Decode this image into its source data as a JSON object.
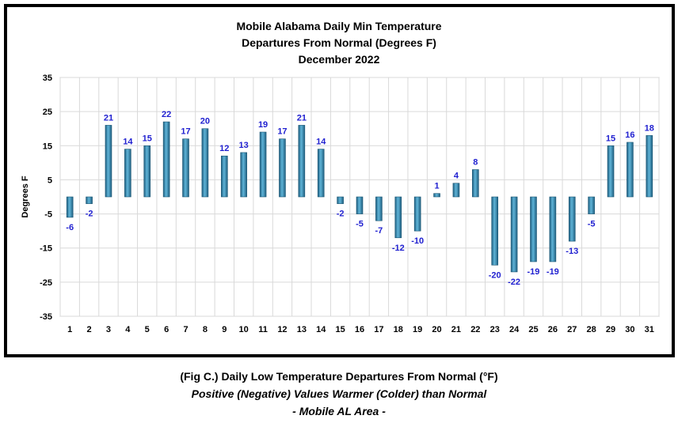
{
  "chart_data": {
    "type": "bar",
    "title_lines": [
      "Mobile Alabama Daily Min Temperature",
      "Departures From Normal (Degrees F)",
      "December 2022"
    ],
    "xlabel": "",
    "ylabel": "Degrees F",
    "ylim": [
      -35,
      35
    ],
    "yticks": [
      35,
      25,
      15,
      5,
      -5,
      -15,
      -25,
      -35
    ],
    "grid": true,
    "categories": [
      "1",
      "2",
      "3",
      "4",
      "5",
      "6",
      "7",
      "8",
      "9",
      "10",
      "11",
      "12",
      "13",
      "14",
      "15",
      "16",
      "17",
      "18",
      "19",
      "20",
      "21",
      "22",
      "23",
      "24",
      "25",
      "26",
      "27",
      "28",
      "29",
      "30",
      "31"
    ],
    "values": [
      -6,
      -2,
      21,
      14,
      15,
      22,
      17,
      20,
      12,
      13,
      19,
      17,
      21,
      14,
      -2,
      -5,
      -7,
      -12,
      -10,
      1,
      4,
      8,
      -20,
      -22,
      -19,
      -19,
      -13,
      -5,
      15,
      16,
      18
    ],
    "bar_color": "#3a8fb7",
    "label_color": "#1f1fd0"
  },
  "caption": {
    "line1": "(Fig C.) Daily Low Temperature Departures From Normal (°F)",
    "line2": "Positive (Negative) Values Warmer (Colder) than Normal",
    "line3": "- Mobile AL Area -"
  }
}
